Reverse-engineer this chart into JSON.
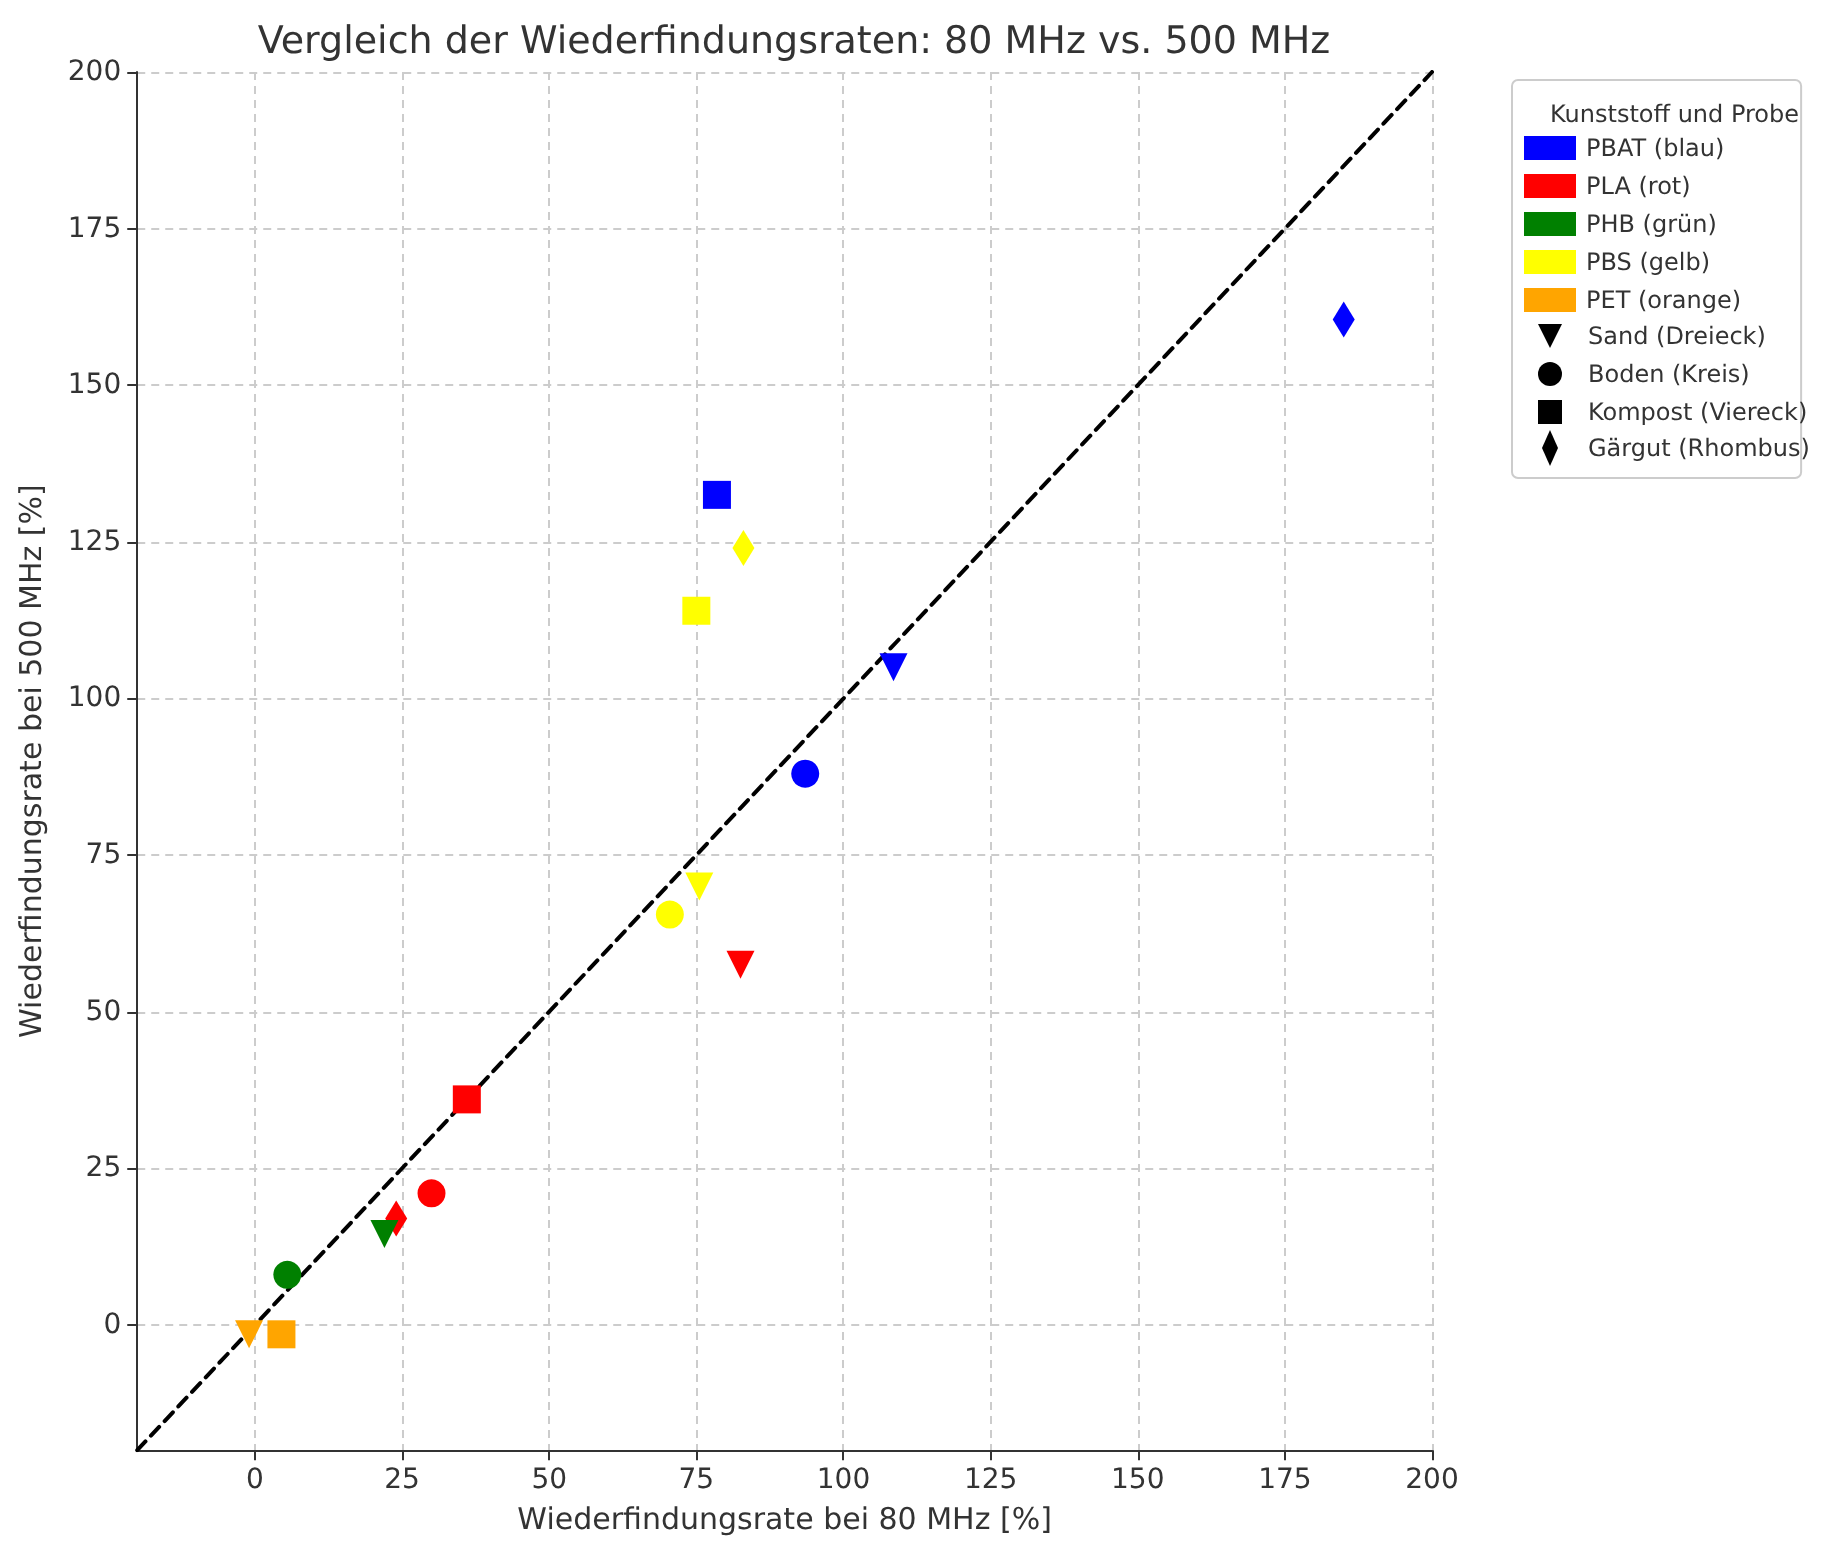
{
  "chart_data": {
    "type": "scatter",
    "title": "Vergleich der Wiederfindungsraten: 80 MHz vs. 500 MHz",
    "xlabel": "Wiederfindungsrate bei 80 MHz [%]",
    "ylabel": "Wiederfindungsrate bei 500 MHz [%]",
    "legend_title": "Kunststoff und Probe",
    "annotations": [
      "Sand (Dreieck)",
      "Boden (Kreis)",
      "Kompost (Viereck)",
      "Gärgut (Rhombus)"
    ],
    "xlim": [
      -20,
      200
    ],
    "xticks": [
      0,
      25,
      50,
      75,
      100,
      125,
      150,
      175,
      200
    ],
    "ylim": [
      -20,
      200
    ],
    "yticks": [
      0,
      25,
      50,
      75,
      100,
      125,
      150,
      175,
      200
    ],
    "grid": true,
    "legend": "right",
    "series": [
      {
        "name": "PBAT (blau)",
        "color": "#0000ff",
        "marker": "triangle",
        "x": [
          108.5
        ],
        "values": [
          105
        ]
      },
      {
        "color": "#0000ff",
        "marker": "circle",
        "x": [
          93.5
        ],
        "values": [
          88
        ]
      },
      {
        "color": "#0000ff",
        "marker": "square",
        "x": [
          78.5
        ],
        "values": [
          132.5
        ]
      },
      {
        "color": "#0000ff",
        "marker": "diamond",
        "x": [
          185
        ],
        "values": [
          160.5
        ]
      },
      {
        "name": "PLA (rot)",
        "color": "#ff0000",
        "marker": "triangle",
        "x": [
          82.5
        ],
        "values": [
          57.5
        ]
      },
      {
        "color": "#ff0000",
        "marker": "circle",
        "x": [
          30
        ],
        "values": [
          21
        ]
      },
      {
        "color": "#ff0000",
        "marker": "square",
        "x": [
          36
        ],
        "values": [
          36
        ]
      },
      {
        "color": "#ff0000",
        "marker": "diamond",
        "x": [
          24
        ],
        "values": [
          17
        ]
      },
      {
        "name": "PHB (grün)",
        "color": "#008000",
        "marker": "triangle",
        "x": [
          22
        ],
        "values": [
          14.5
        ]
      },
      {
        "color": "#008000",
        "marker": "circle",
        "x": [
          5.5
        ],
        "values": [
          8
        ]
      },
      {
        "name": "PBS (gelb)",
        "color": "#ffff00",
        "marker": "triangle",
        "x": [
          75.5
        ],
        "values": [
          70
        ]
      },
      {
        "color": "#ffff00",
        "marker": "circle",
        "x": [
          70.5
        ],
        "values": [
          65.5
        ]
      },
      {
        "color": "#ffff00",
        "marker": "square",
        "x": [
          75
        ],
        "values": [
          114
        ]
      },
      {
        "color": "#ffff00",
        "marker": "diamond",
        "x": [
          83
        ],
        "values": [
          124
        ]
      },
      {
        "name": "PET (orange)",
        "color": "#ffa500",
        "marker": "triangle",
        "x": [
          -1
        ],
        "values": [
          -1.5
        ]
      },
      {
        "color": "#ffa500",
        "marker": "square",
        "x": [
          4.5
        ],
        "values": [
          -1.5
        ]
      },
      {
        "type": "line",
        "color": "#000000",
        "line_style": "dashed",
        "marker": "none",
        "x": [
          -20,
          200
        ],
        "values": [
          -20,
          200
        ]
      }
    ]
  }
}
